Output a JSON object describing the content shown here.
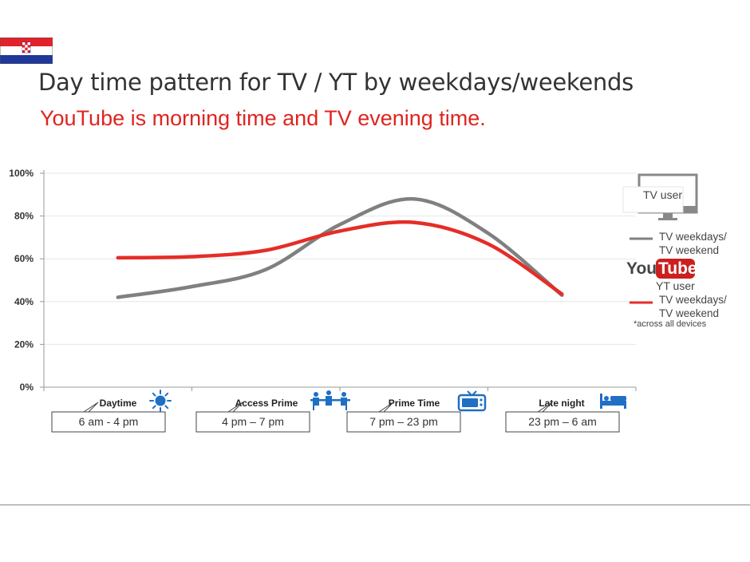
{
  "page": {
    "title": "Day time pattern for TV / YT by weekdays/weekends",
    "subtitle": "YouTube is morning time and TV evening time.",
    "flag": "croatia-flag-icon"
  },
  "chart_data": {
    "type": "line",
    "categories": [
      "Daytime",
      "Access Prime",
      "Prime Time",
      "Late night"
    ],
    "time_ranges": [
      "6 am - 4 pm",
      "4 pm – 7 pm",
      "7 pm – 23 pm",
      "23 pm – 6 am"
    ],
    "category_icons": [
      "sun-icon",
      "people-at-table-icon",
      "tv-icon",
      "bed-icon"
    ],
    "y_ticks": [
      "100%",
      "80%",
      "60%",
      "40%",
      "20%",
      "0%"
    ],
    "ylim": [
      0,
      100
    ],
    "grid": true,
    "legend": {
      "tv_header": "TV user",
      "tv_series_line1": "TV weekdays/",
      "tv_series_line2": "TV weekend",
      "yt_logo_text_1": "You",
      "yt_logo_text_2": "Tube",
      "yt_header": "YT user",
      "yt_series_line1": "TV weekdays/",
      "yt_series_line2": "TV weekend",
      "note": "*across all devices"
    },
    "series": [
      {
        "key": "tv",
        "color": "#808080",
        "points": [
          [
            0.5,
            42
          ],
          [
            1.0,
            47
          ],
          [
            1.5,
            55
          ],
          [
            2.0,
            76
          ],
          [
            2.5,
            88
          ],
          [
            3.0,
            72
          ],
          [
            3.5,
            43
          ]
        ]
      },
      {
        "key": "yt",
        "color": "#e52d27",
        "points": [
          [
            0.5,
            60.5
          ],
          [
            1.0,
            61
          ],
          [
            1.5,
            64
          ],
          [
            2.0,
            73
          ],
          [
            2.5,
            77
          ],
          [
            3.0,
            67
          ],
          [
            3.5,
            43.5
          ]
        ]
      }
    ]
  }
}
